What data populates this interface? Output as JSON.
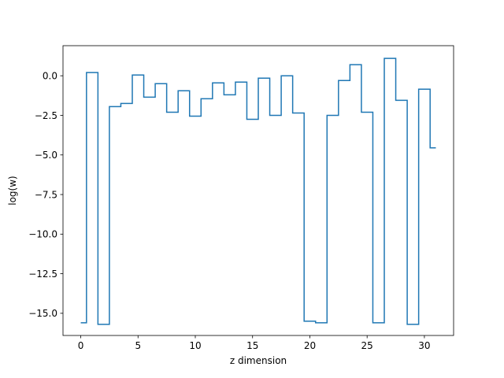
{
  "chart_data": {
    "type": "line",
    "drawstyle": "steps-mid",
    "title": "",
    "xlabel": "z dimension",
    "ylabel": "log(w)",
    "xlim": [
      -1.55,
      32.55
    ],
    "ylim": [
      -16.4,
      1.9
    ],
    "xticks": [
      0,
      5,
      10,
      15,
      20,
      25,
      30
    ],
    "yticks": [
      0.0,
      -2.5,
      -5.0,
      -7.5,
      -10.0,
      -12.5,
      -15.0
    ],
    "xtick_labels": [
      "0",
      "5",
      "10",
      "15",
      "20",
      "25",
      "30"
    ],
    "ytick_labels": [
      "0.0",
      "−2.5",
      "−5.0",
      "−7.5",
      "−10.0",
      "−12.5",
      "−15.0"
    ],
    "grid": false,
    "legend": "none",
    "line_color": "#1f77b4",
    "series": [
      {
        "x": [
          0,
          1,
          2,
          3,
          4,
          5,
          6,
          7,
          8,
          9,
          10,
          11,
          12,
          13,
          14,
          15,
          16,
          17,
          18,
          19,
          20,
          21,
          22,
          23,
          24,
          25,
          26,
          27,
          28,
          29,
          30,
          31
        ],
        "values": [
          -15.6,
          0.2,
          -15.7,
          -1.95,
          -1.75,
          0.05,
          -1.35,
          -0.5,
          -2.3,
          -0.95,
          -2.55,
          -1.45,
          -0.45,
          -1.2,
          -0.4,
          -2.75,
          -0.15,
          -2.5,
          0.0,
          -2.35,
          -15.5,
          -15.6,
          -2.5,
          -0.3,
          0.7,
          -2.3,
          -15.6,
          1.1,
          -1.55,
          -15.7,
          -0.85,
          -4.55
        ]
      }
    ]
  }
}
